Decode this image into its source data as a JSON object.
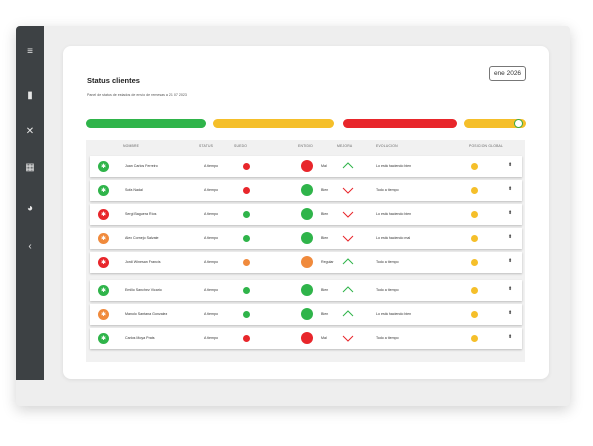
{
  "colors": {
    "green": "#2fb44a",
    "yellow": "#f5bf2a",
    "red": "#e8262b",
    "orange": "#f08a3c"
  },
  "sidebar": {
    "icons": [
      "menu-icon",
      "device-icon",
      "close-icon",
      "chart-icon",
      "pie-icon",
      "chevron-left-icon"
    ]
  },
  "header": {
    "title": "Status clientes",
    "subtitle": "Panel de status de estados de envío de remesas a 21 07 2023",
    "date": "ene 2026"
  },
  "summary_bars": [
    {
      "color": "#2fb44a"
    },
    {
      "color": "#f5bf2a"
    },
    {
      "color": "#e8262b"
    },
    {
      "color": "#f5bf2a",
      "toggle": true
    }
  ],
  "table": {
    "headers": [
      "NOMBRE",
      "STATUS",
      "SUEDO",
      "ENTIDID",
      "MEJORA",
      "EVOLUCION",
      "POSICION GLOBAL"
    ],
    "rows": [
      {
        "avatar": "#2fb44a",
        "name": "Juan Carlos Ferreiro",
        "status": "A tiempo",
        "s": "#e8262b",
        "e": "#e8262b",
        "label": "Mal",
        "trend": "up",
        "tcolor": "#2fb44a",
        "evo": "Lo está haciendo bien",
        "g": "#f5bf2a"
      },
      {
        "avatar": "#2fb44a",
        "name": "Sofa Nadal",
        "status": "A tiempo",
        "s": "#e8262b",
        "e": "#2fb44a",
        "label": "Bien",
        "trend": "down",
        "tcolor": "#e8262b",
        "evo": "Todo a tiempo",
        "g": "#f5bf2a"
      },
      {
        "avatar": "#e8262b",
        "name": "Sergi Baguera Ríos",
        "status": "A tiempo",
        "s": "#2fb44a",
        "e": "#2fb44a",
        "label": "Bien",
        "trend": "down",
        "tcolor": "#e8262b",
        "evo": "Lo está haciendo bien",
        "g": "#f5bf2a"
      },
      {
        "avatar": "#f08a3c",
        "name": "Alex Cornejo Salvate",
        "status": "A tiempo",
        "s": "#2fb44a",
        "e": "#2fb44a",
        "label": "Bien",
        "trend": "down",
        "tcolor": "#e8262b",
        "evo": "Lo está haciendo mal",
        "g": "#f5bf2a"
      },
      {
        "avatar": "#e8262b",
        "name": "Jordi Winesan Francis",
        "status": "A tiempo",
        "s": "#f08a3c",
        "e": "#f08a3c",
        "label": "Regular",
        "trend": "up",
        "tcolor": "#2fb44a",
        "evo": "Todo a tiempo",
        "g": "#f5bf2a"
      },
      {
        "avatar": "#2fb44a",
        "name": "Emilio Sanchez Vicario",
        "status": "A tiempo",
        "s": "#2fb44a",
        "e": "#2fb44a",
        "label": "Bien",
        "trend": "up",
        "tcolor": "#2fb44a",
        "evo": "Todo a tiempo",
        "g": "#f5bf2a"
      },
      {
        "avatar": "#f08a3c",
        "name": "Manolo Santana Gonzalez",
        "status": "A tiempo",
        "s": "#2fb44a",
        "e": "#2fb44a",
        "label": "Bien",
        "trend": "up",
        "tcolor": "#2fb44a",
        "evo": "Lo está haciendo bien",
        "g": "#f5bf2a"
      },
      {
        "avatar": "#2fb44a",
        "name": "Carlos Moya Prats",
        "status": "A tiempo",
        "s": "#e8262b",
        "e": "#e8262b",
        "label": "Mal",
        "trend": "down",
        "tcolor": "#e8262b",
        "evo": "Todo a tiempo",
        "g": "#f5bf2a"
      }
    ]
  }
}
